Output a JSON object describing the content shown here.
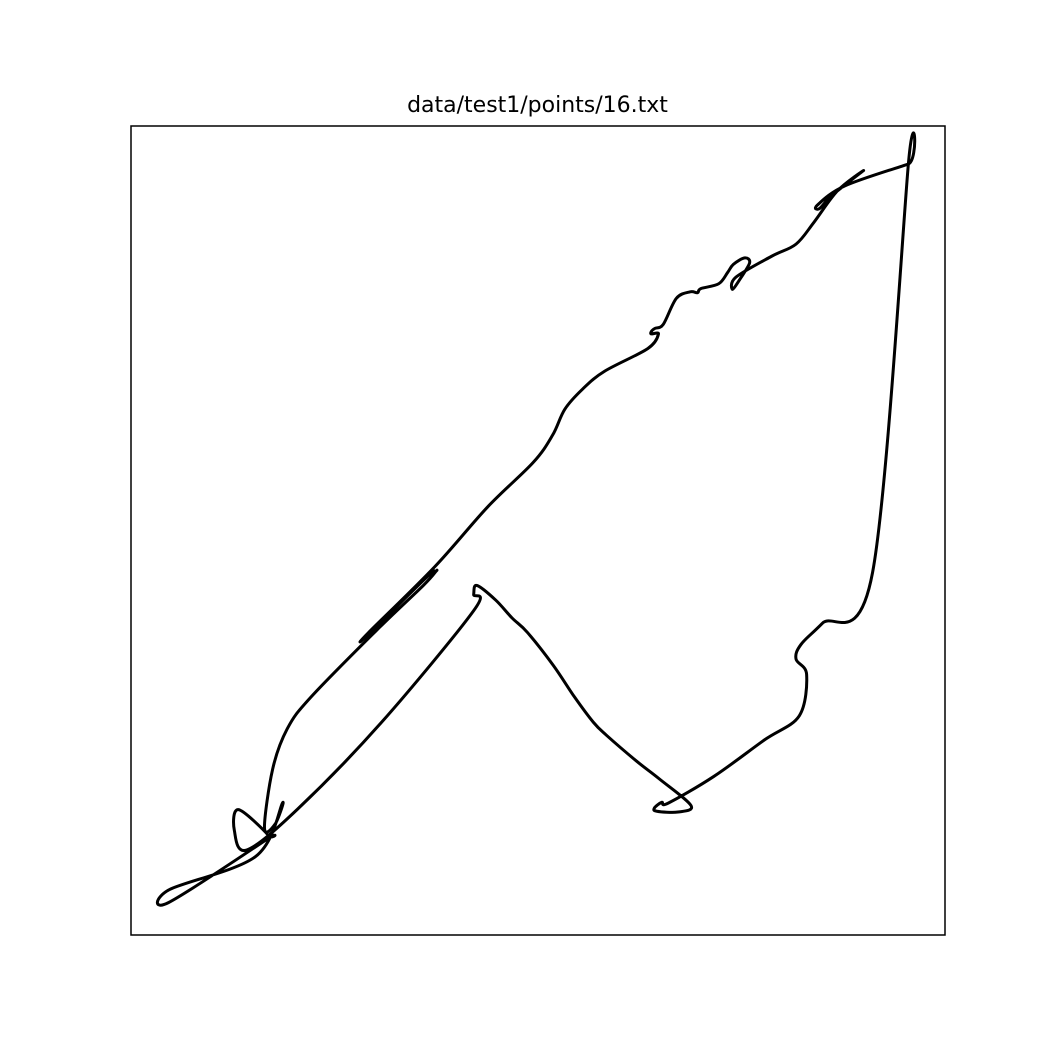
{
  "chart_data": {
    "type": "line",
    "title": "data/test1/points/16.txt",
    "xlabel": "",
    "ylabel": "",
    "axes_ticks": "none",
    "grid": false,
    "xlim": [
      0,
      1
    ],
    "ylim": [
      0,
      1
    ],
    "line_color": "#000000",
    "series": [
      {
        "closed": true,
        "x": [
          0.955,
          0.877,
          0.843,
          0.846,
          0.861,
          0.9,
          0.868,
          0.839,
          0.817,
          0.787,
          0.743,
          0.739,
          0.749,
          0.76,
          0.754,
          0.74,
          0.733,
          0.722,
          0.7,
          0.696,
          0.687,
          0.67,
          0.654,
          0.644,
          0.64,
          0.639,
          0.648,
          0.635,
          0.582,
          0.555,
          0.533,
          0.518,
          0.494,
          0.438,
          0.373,
          0.292,
          0.29,
          0.364,
          0.373,
          0.375,
          0.359,
          0.302,
          0.221,
          0.192,
          0.174,
          0.164,
          0.177,
          0.186,
          0.153,
          0.047,
          0.046,
          0.165,
          0.169,
          0.132,
          0.127,
          0.142,
          0.204,
          0.307,
          0.421,
          0.421,
          0.425,
          0.448,
          0.468,
          0.487,
          0.519,
          0.545,
          0.568,
          0.584,
          0.621,
          0.649,
          0.688,
          0.672,
          0.646,
          0.643,
          0.652,
          0.66,
          0.716,
          0.778,
          0.821,
          0.83,
          0.817,
          0.823,
          0.849,
          0.911,
          0.955
        ],
        "y": [
          0.953,
          0.926,
          0.902,
          0.898,
          0.914,
          0.945,
          0.92,
          0.881,
          0.854,
          0.839,
          0.813,
          0.798,
          0.812,
          0.831,
          0.837,
          0.829,
          0.819,
          0.805,
          0.799,
          0.794,
          0.795,
          0.787,
          0.755,
          0.75,
          0.747,
          0.743,
          0.743,
          0.725,
          0.697,
          0.675,
          0.65,
          0.618,
          0.584,
          0.529,
          0.455,
          0.374,
          0.37,
          0.443,
          0.448,
          0.45,
          0.432,
          0.377,
          0.294,
          0.255,
          0.205,
          0.132,
          0.137,
          0.163,
          0.097,
          0.056,
          0.04,
          0.117,
          0.123,
          0.155,
          0.129,
          0.105,
          0.155,
          0.262,
          0.401,
          0.421,
          0.432,
          0.414,
          0.392,
          0.374,
          0.333,
          0.294,
          0.263,
          0.247,
          0.215,
          0.193,
          0.16,
          0.152,
          0.153,
          0.157,
          0.164,
          0.163,
          0.196,
          0.241,
          0.271,
          0.322,
          0.341,
          0.359,
          0.385,
          0.448,
          0.953
        ]
      }
    ]
  }
}
